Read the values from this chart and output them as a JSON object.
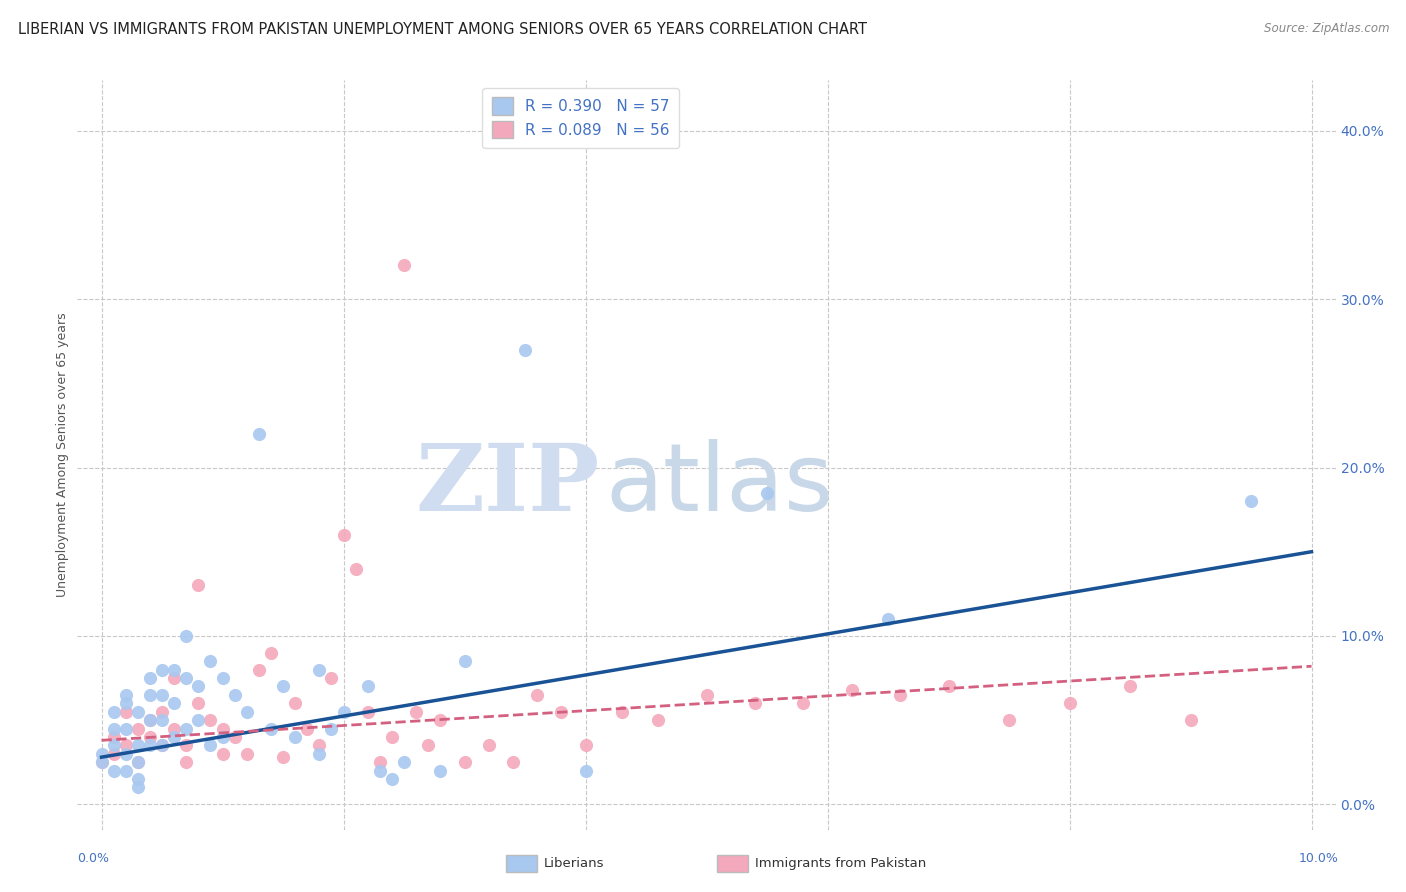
{
  "title": "LIBERIAN VS IMMIGRANTS FROM PAKISTAN UNEMPLOYMENT AMONG SENIORS OVER 65 YEARS CORRELATION CHART",
  "source": "Source: ZipAtlas.com",
  "ylabel": "Unemployment Among Seniors over 65 years",
  "ytick_labels": [
    "0.0%",
    "10.0%",
    "20.0%",
    "30.0%",
    "40.0%"
  ],
  "ytick_values": [
    0.0,
    0.1,
    0.2,
    0.3,
    0.4
  ],
  "xlim": [
    -0.002,
    0.102
  ],
  "ylim": [
    -0.015,
    0.43
  ],
  "legend_blue_R": "R = 0.390",
  "legend_blue_N": "N = 57",
  "legend_pink_R": "R = 0.089",
  "legend_pink_N": "N = 56",
  "legend_label_blue": "Liberians",
  "legend_label_pink": "Immigrants from Pakistan",
  "blue_color": "#A8C8F0",
  "pink_color": "#F4A8BB",
  "blue_line_color": "#1A5296",
  "pink_line_color": "#D46080",
  "background_color": "#FFFFFF",
  "title_color": "#222222",
  "axis_label_color": "#4472C4",
  "grid_color": "#C8C8C8",
  "watermark_zip": "ZIP",
  "watermark_atlas": "atlas",
  "blue_points_x": [
    0.0,
    0.0,
    0.001,
    0.001,
    0.001,
    0.001,
    0.002,
    0.002,
    0.002,
    0.002,
    0.002,
    0.003,
    0.003,
    0.003,
    0.003,
    0.003,
    0.004,
    0.004,
    0.004,
    0.004,
    0.005,
    0.005,
    0.005,
    0.005,
    0.006,
    0.006,
    0.006,
    0.007,
    0.007,
    0.007,
    0.008,
    0.008,
    0.009,
    0.009,
    0.01,
    0.01,
    0.011,
    0.012,
    0.013,
    0.014,
    0.015,
    0.016,
    0.018,
    0.018,
    0.019,
    0.02,
    0.022,
    0.023,
    0.024,
    0.025,
    0.028,
    0.03,
    0.035,
    0.04,
    0.055,
    0.065,
    0.095
  ],
  "blue_points_y": [
    0.03,
    0.025,
    0.055,
    0.045,
    0.035,
    0.02,
    0.06,
    0.065,
    0.045,
    0.03,
    0.02,
    0.055,
    0.035,
    0.025,
    0.015,
    0.01,
    0.075,
    0.065,
    0.05,
    0.035,
    0.08,
    0.065,
    0.05,
    0.035,
    0.08,
    0.06,
    0.04,
    0.1,
    0.075,
    0.045,
    0.07,
    0.05,
    0.085,
    0.035,
    0.075,
    0.04,
    0.065,
    0.055,
    0.22,
    0.045,
    0.07,
    0.04,
    0.08,
    0.03,
    0.045,
    0.055,
    0.07,
    0.02,
    0.015,
    0.025,
    0.02,
    0.085,
    0.27,
    0.02,
    0.185,
    0.11,
    0.18
  ],
  "pink_points_x": [
    0.0,
    0.001,
    0.001,
    0.002,
    0.002,
    0.003,
    0.003,
    0.004,
    0.004,
    0.005,
    0.005,
    0.006,
    0.006,
    0.007,
    0.007,
    0.008,
    0.008,
    0.009,
    0.01,
    0.01,
    0.011,
    0.012,
    0.013,
    0.014,
    0.015,
    0.016,
    0.017,
    0.018,
    0.019,
    0.02,
    0.021,
    0.022,
    0.023,
    0.024,
    0.025,
    0.026,
    0.027,
    0.028,
    0.03,
    0.032,
    0.034,
    0.036,
    0.038,
    0.04,
    0.043,
    0.046,
    0.05,
    0.054,
    0.058,
    0.062,
    0.066,
    0.07,
    0.075,
    0.08,
    0.085,
    0.09
  ],
  "pink_points_y": [
    0.025,
    0.04,
    0.03,
    0.055,
    0.035,
    0.045,
    0.025,
    0.04,
    0.05,
    0.035,
    0.055,
    0.075,
    0.045,
    0.035,
    0.025,
    0.13,
    0.06,
    0.05,
    0.045,
    0.03,
    0.04,
    0.03,
    0.08,
    0.09,
    0.028,
    0.06,
    0.045,
    0.035,
    0.075,
    0.16,
    0.14,
    0.055,
    0.025,
    0.04,
    0.32,
    0.055,
    0.035,
    0.05,
    0.025,
    0.035,
    0.025,
    0.065,
    0.055,
    0.035,
    0.055,
    0.05,
    0.065,
    0.06,
    0.06,
    0.068,
    0.065,
    0.07,
    0.05,
    0.06,
    0.07,
    0.05
  ],
  "blue_trend_x": [
    0.0,
    0.1
  ],
  "blue_trend_y": [
    0.028,
    0.15
  ],
  "pink_trend_x": [
    0.0,
    0.1
  ],
  "pink_trend_y": [
    0.038,
    0.082
  ],
  "title_fontsize": 10.5,
  "axis_fontsize": 9,
  "legend_fontsize": 11,
  "marker_size": 90
}
